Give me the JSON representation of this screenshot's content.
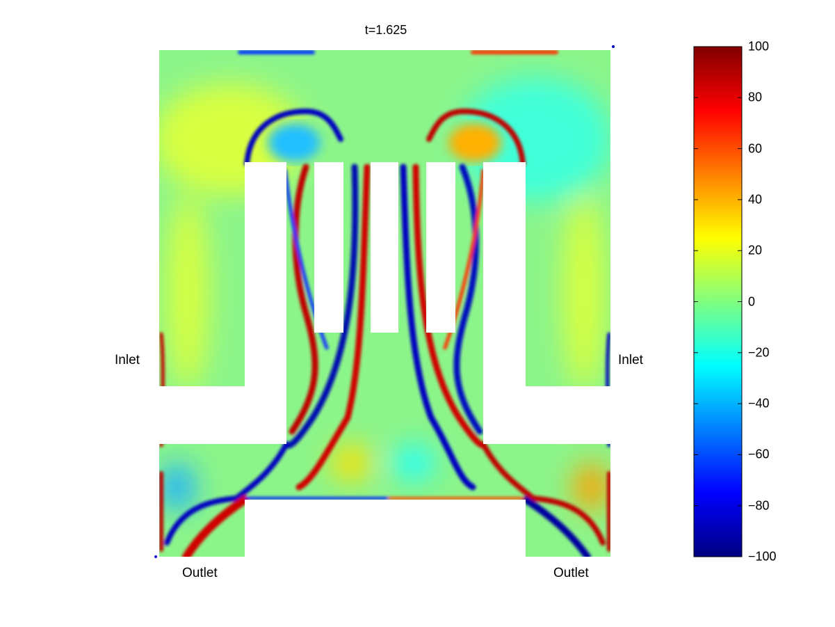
{
  "chart_data": {
    "type": "heatmap",
    "title": "t=1.625",
    "colormap": "jet",
    "clim": [
      -100,
      100
    ],
    "colorbar": {
      "ticks": [
        100,
        80,
        60,
        40,
        20,
        0,
        -20,
        -40,
        -60,
        -80,
        -100
      ],
      "tick_labels": [
        "100",
        "80",
        "60",
        "40",
        "20",
        "0",
        "−20",
        "−40",
        "−60",
        "−80",
        "−100"
      ],
      "placement": "right"
    },
    "annotations": {
      "inlet_left": "Inlet",
      "inlet_right": "Inlet",
      "outlet_left": "Outlet",
      "outlet_right": "Outlet"
    },
    "colors": {
      "zero": "#80ff80",
      "positive_max": "#800000",
      "negative_max": "#000080"
    }
  }
}
